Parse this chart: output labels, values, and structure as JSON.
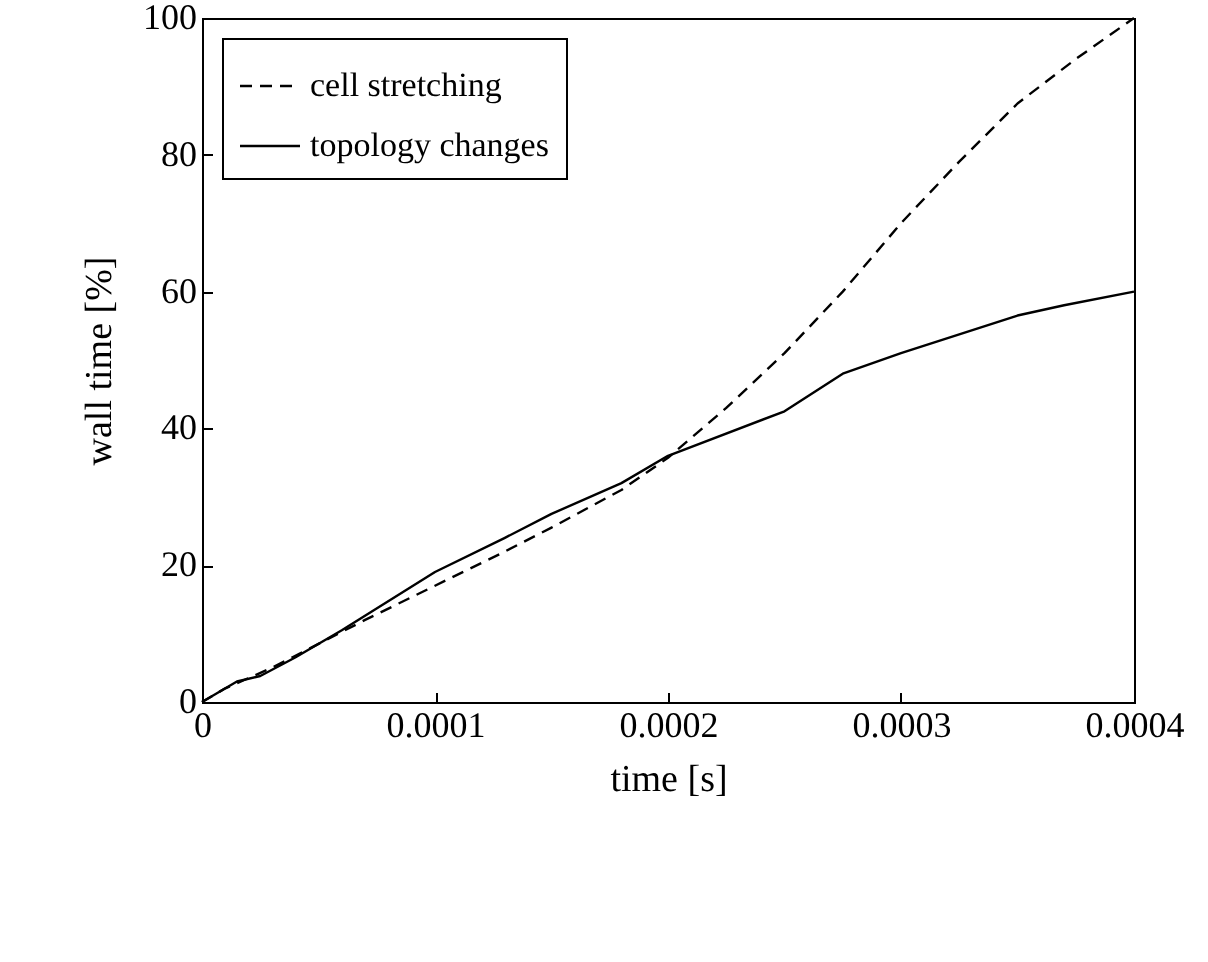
{
  "chart_data": {
    "type": "line",
    "xlabel": "time [s]",
    "ylabel": "wall time [%]",
    "xlim": [
      0,
      0.0004
    ],
    "ylim": [
      0,
      100
    ],
    "xticks": [
      0,
      0.0001,
      0.0002,
      0.0003,
      0.0004
    ],
    "yticks": [
      0,
      20,
      40,
      60,
      80,
      100
    ],
    "legend": "top left",
    "series": [
      {
        "name": "cell stretching",
        "color": "#000000",
        "line_style": "dashed",
        "x": [
          0,
          1e-05,
          3e-05,
          5e-05,
          7e-05,
          0.0001,
          0.00013,
          0.00015,
          0.00018,
          0.0002,
          0.000225,
          0.00025,
          0.000275,
          0.0003,
          0.000325,
          0.00035,
          0.000375,
          0.0004
        ],
        "values": [
          0,
          2,
          5,
          8.5,
          12,
          17,
          22,
          25.5,
          31,
          35.7,
          43,
          51,
          60,
          70,
          79,
          87.5,
          94,
          100
        ]
      },
      {
        "name": "topology changes",
        "color": "#000000",
        "line_style": "solid",
        "x": [
          0,
          1.5e-05,
          2.5e-05,
          4e-05,
          6e-05,
          0.0001,
          0.00013,
          0.00015,
          0.00018,
          0.0002,
          0.00025,
          0.000275,
          0.0003,
          0.00035,
          0.00037,
          0.0004
        ],
        "values": [
          0,
          3,
          3.8,
          6.5,
          10.5,
          19,
          24,
          27.5,
          32,
          36,
          42.5,
          48,
          51,
          56.5,
          58,
          60
        ]
      }
    ]
  }
}
